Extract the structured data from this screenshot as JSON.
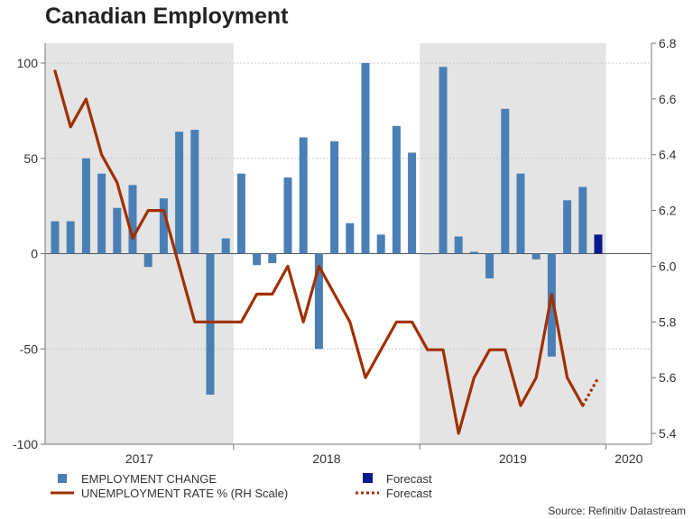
{
  "chart_data": {
    "type": "bar+line",
    "title": "Canadian Employment",
    "source": "Source: Refinitiv Datastream",
    "colors": {
      "bar": "#4a7fb5",
      "forecast_bar": "#0a1a8a",
      "line": "#a03000",
      "shade": "#e4e4e4",
      "grid": "#c8c8c8"
    },
    "left_axis": {
      "min": -100,
      "max": 100,
      "ticks": [
        100,
        50,
        0,
        -50,
        -100
      ]
    },
    "right_axis": {
      "min": 5.4,
      "max": 6.8,
      "ticks": [
        "6.8",
        "6.6",
        "6.4",
        "6.2",
        "6.0",
        "5.8",
        "5.6",
        "5.4"
      ]
    },
    "years": [
      "2017",
      "2018",
      "2019",
      "2020"
    ],
    "shaded_years": [
      "2017",
      "2019"
    ],
    "months_per_year": 12,
    "employment_change": [
      17,
      17,
      50,
      42,
      24,
      36,
      -7,
      29,
      64,
      65,
      -74,
      8,
      42,
      -6,
      -5,
      40,
      61,
      -50,
      59,
      16,
      100,
      10,
      67,
      53,
      0,
      98,
      9,
      1,
      -13,
      76,
      42,
      -3,
      -54,
      28,
      35
    ],
    "employment_forecast": {
      "index": 35,
      "value": 10
    },
    "unemployment_rate": [
      6.7,
      6.5,
      6.6,
      6.4,
      6.3,
      6.1,
      6.2,
      6.2,
      6.0,
      5.8,
      5.8,
      5.8,
      5.8,
      5.9,
      5.9,
      6.0,
      5.8,
      6.0,
      5.9,
      5.8,
      5.6,
      5.7,
      5.8,
      5.8,
      5.7,
      5.7,
      5.4,
      5.6,
      5.7,
      5.7,
      5.5,
      5.6,
      5.9,
      5.6,
      5.5
    ],
    "unemployment_forecast": [
      {
        "index": 34,
        "value": 5.5
      },
      {
        "index": 35,
        "value": 5.6
      }
    ],
    "legend": {
      "bar": "EMPLOYMENT CHANGE",
      "bar_forecast": "Forecast",
      "line": "UNEMPLOYMENT RATE % (RH Scale)",
      "line_forecast": "Forecast"
    }
  }
}
